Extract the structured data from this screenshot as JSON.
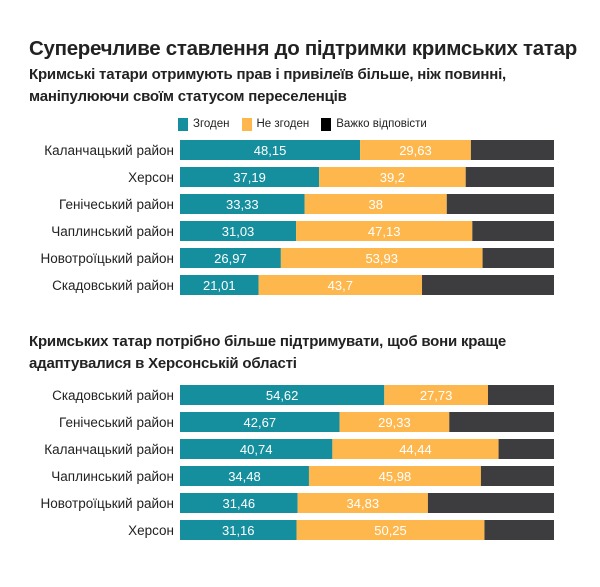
{
  "title": "Суперечливе ставлення до підтримки кримських татар",
  "colors": {
    "agree": "#158f9e",
    "disagree": "#fdb74d",
    "hard": "#3d3d3f",
    "hard_legend": "#000000"
  },
  "legend": [
    {
      "label": "Згоден",
      "key": "agree"
    },
    {
      "label": "Не згоден",
      "key": "disagree"
    },
    {
      "label": "Важко відповісти",
      "key": "hard"
    }
  ],
  "chart_data": [
    {
      "type": "bar",
      "orientation": "horizontal",
      "stacked": true,
      "title": "Кримські татари отримують прав і привілеїв більше, ніж повинні, маніпулюючи своїм статусом переселенців",
      "categories": [
        "Каланчацький район",
        "Херсон",
        "Генічеський район",
        "Чаплинський район",
        "Новотроїцький район",
        "Скадовський район"
      ],
      "series": [
        {
          "name": "Згоден",
          "values": [
            48.15,
            37.19,
            33.33,
            31.03,
            26.97,
            21.01
          ],
          "labels": [
            "48,15",
            "37,19",
            "33,33",
            "31,03",
            "26,97",
            "21,01"
          ]
        },
        {
          "name": "Не згоден",
          "values": [
            29.63,
            39.2,
            38,
            47.13,
            53.93,
            43.7
          ],
          "labels": [
            "29,63",
            "39,2",
            "38",
            "47,13",
            "53,93",
            "43,7"
          ]
        },
        {
          "name": "Важко відповісти",
          "values": [
            22.22,
            23.61,
            28.67,
            21.84,
            19.1,
            35.29
          ],
          "labels": [
            "",
            "",
            "",
            "",
            "",
            ""
          ]
        }
      ],
      "xlim": [
        0,
        100
      ],
      "legend_position": "top"
    },
    {
      "type": "bar",
      "orientation": "horizontal",
      "stacked": true,
      "title": "Кримських татар потрібно більше підтримувати, щоб вони краще адаптувалися в Херсонській області",
      "categories": [
        "Скадовський район",
        "Генічеський район",
        "Каланчацький район",
        "Чаплинський район",
        "Новотроїцький район",
        "Херсон"
      ],
      "series": [
        {
          "name": "Згоден",
          "values": [
            54.62,
            42.67,
            40.74,
            34.48,
            31.46,
            31.16
          ],
          "labels": [
            "54,62",
            "42,67",
            "40,74",
            "34,48",
            "31,46",
            "31,16"
          ]
        },
        {
          "name": "Не згоден",
          "values": [
            27.73,
            29.33,
            44.44,
            45.98,
            34.83,
            50.25
          ],
          "labels": [
            "27,73",
            "29,33",
            "44,44",
            "45,98",
            "34,83",
            "50,25"
          ]
        },
        {
          "name": "Важко відповісти",
          "values": [
            17.65,
            28.0,
            14.82,
            19.54,
            33.71,
            18.59
          ],
          "labels": [
            "",
            "",
            "",
            "",
            "",
            ""
          ]
        }
      ],
      "xlim": [
        0,
        100
      ]
    }
  ]
}
